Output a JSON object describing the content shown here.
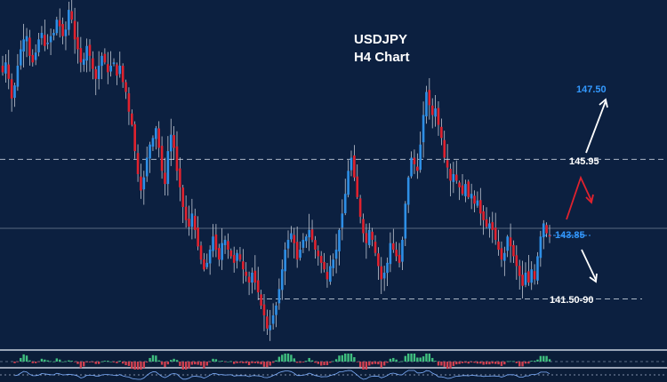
{
  "chart_data": {
    "type": "candlestick",
    "title": "USDJPY",
    "subtitle": "H4 Chart",
    "grid": false,
    "ylim": [
      140.2,
      150.8
    ],
    "colors": {
      "background": "#0c2040",
      "bull": "#2e8fe6",
      "bear": "#e0222e",
      "level_line": "#c9d2df",
      "target_up": "#3399ff",
      "label_white": "#ffffff",
      "osc_pos": "#3fbf7f",
      "osc_neg": "#d04050"
    },
    "closes": [
      148.6,
      148.9,
      148.4,
      147.8,
      148.2,
      148.8,
      149.3,
      149.6,
      149.7,
      149.1,
      148.9,
      149.2,
      149.6,
      149.8,
      149.4,
      149.5,
      149.7,
      149.8,
      150.2,
      150.0,
      149.7,
      149.9,
      150.5,
      150.2,
      149.6,
      149.3,
      148.9,
      149.0,
      149.4,
      149.1,
      148.7,
      148.4,
      148.8,
      149.1,
      148.9,
      148.6,
      148.8,
      148.9,
      148.5,
      148.8,
      148.3,
      148.0,
      147.4,
      147.0,
      146.2,
      145.5,
      145.0,
      145.4,
      146.0,
      146.4,
      146.6,
      146.9,
      146.3,
      145.6,
      145.2,
      146.2,
      146.7,
      146.3,
      145.6,
      145.1,
      144.5,
      144.1,
      143.9,
      144.3,
      143.8,
      143.3,
      142.9,
      142.6,
      142.8,
      143.2,
      143.6,
      143.2,
      142.9,
      143.4,
      143.5,
      143.2,
      143.0,
      142.8,
      143.1,
      142.9,
      142.6,
      142.4,
      142.2,
      142.5,
      142.2,
      141.9,
      141.5,
      141.2,
      140.8,
      140.9,
      141.2,
      141.5,
      142.0,
      142.6,
      143.2,
      143.5,
      143.7,
      143.4,
      142.9,
      143.2,
      143.5,
      143.6,
      143.8,
      143.5,
      143.2,
      143.0,
      142.8,
      142.6,
      142.3,
      142.7,
      142.9,
      143.2,
      143.8,
      144.3,
      144.9,
      145.6,
      146.0,
      145.4,
      144.8,
      144.2,
      143.7,
      143.4,
      143.8,
      143.5,
      143.1,
      142.7,
      142.3,
      142.5,
      142.8,
      143.4,
      143.2,
      143.0,
      142.8,
      143.5,
      144.6,
      145.4,
      146.0,
      145.8,
      145.6,
      146.4,
      147.3,
      148.0,
      147.6,
      147.3,
      147.5,
      147.0,
      146.6,
      146.0,
      145.7,
      145.3,
      145.5,
      145.3,
      145.1,
      144.9,
      145.2,
      144.8,
      144.9,
      144.6,
      144.7,
      144.3,
      144.1,
      143.9,
      144.0,
      143.8,
      143.5,
      143.2,
      142.9,
      143.1,
      143.6,
      143.3,
      143.0,
      142.7,
      142.4,
      142.1,
      142.5,
      142.2,
      142.6,
      142.3,
      143.0,
      143.6,
      144.0,
      143.7,
      143.6
    ],
    "levels": [
      {
        "value": 145.95,
        "label": "145.95",
        "style": "dashed",
        "span": "full"
      },
      {
        "value": 143.85,
        "label": "143.85",
        "style": "solid",
        "span": "full"
      },
      {
        "value": 141.7,
        "label": "141.50-90",
        "style": "dashed",
        "span": "partial"
      }
    ],
    "target_label": "147.50"
  }
}
